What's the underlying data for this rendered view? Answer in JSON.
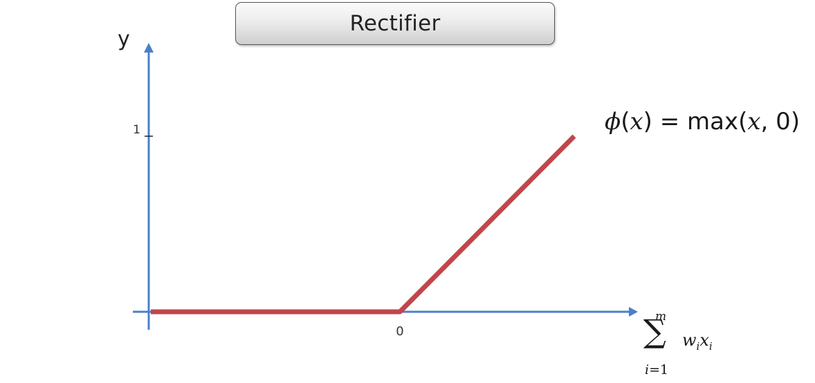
{
  "chart_data": {
    "type": "line",
    "title": "Rectifier",
    "ylabel": "y",
    "xlabel": {
      "sum_symbol": "∑",
      "upper_limit": "m",
      "lower_index": "i",
      "lower_eq": "=",
      "lower_start": "1",
      "term_w": "w",
      "term_x": "x",
      "term_sub": "i"
    },
    "annotation": {
      "phi": "ϕ",
      "lhs_open": "(",
      "lhs_var": "x",
      "lhs_close": ")",
      "eq": " = ",
      "func": "max",
      "args_open": "(",
      "arg1": "x",
      "comma": ", ",
      "arg2": "0",
      "args_close": ")"
    },
    "x_ticks": [
      {
        "value": 0,
        "label": "0"
      }
    ],
    "y_ticks": [
      {
        "value": 1,
        "label": "1"
      }
    ],
    "xlim": [
      -1,
      0.7
    ],
    "ylim": [
      -0.07,
      1.4
    ],
    "series": [
      {
        "color": "#c0464c",
        "points": [
          [
            -1,
            0
          ],
          [
            0,
            0
          ],
          [
            0.7,
            1
          ]
        ]
      }
    ],
    "colors": {
      "axis": "#4a7fcb",
      "line": "#c0464c"
    }
  }
}
